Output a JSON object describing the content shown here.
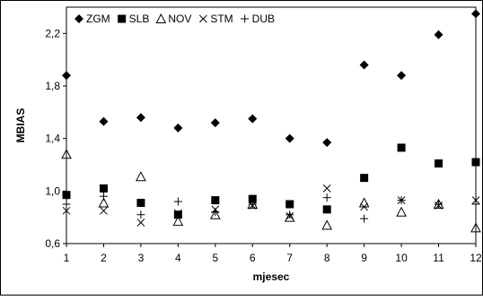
{
  "chart_data": {
    "type": "scatter",
    "title": "",
    "xlabel": "mjesec",
    "ylabel": "MBIAS",
    "x": [
      1,
      2,
      3,
      4,
      5,
      6,
      7,
      8,
      9,
      10,
      11,
      12
    ],
    "xticks": [
      "1",
      "2",
      "3",
      "4",
      "5",
      "6",
      "7",
      "8",
      "9",
      "10",
      "11",
      "12"
    ],
    "xlim": [
      1,
      12
    ],
    "ylim": [
      0.6,
      2.4
    ],
    "yticks": [
      "0,6",
      "1,0",
      "1,4",
      "1,8",
      "2,2"
    ],
    "ytick_values": [
      0.6,
      1.0,
      1.4,
      1.8,
      2.2
    ],
    "grid": false,
    "legend_position": "top-left",
    "series": [
      {
        "name": "ZGM",
        "marker": "diamond",
        "values": [
          1.88,
          1.53,
          1.56,
          1.48,
          1.52,
          1.55,
          1.4,
          1.37,
          1.96,
          1.88,
          2.19,
          2.35
        ]
      },
      {
        "name": "SLB",
        "marker": "square",
        "values": [
          0.97,
          1.02,
          0.91,
          0.82,
          0.93,
          0.94,
          0.9,
          0.86,
          1.1,
          1.33,
          1.21,
          1.22
        ]
      },
      {
        "name": "NOV",
        "marker": "triangle",
        "values": [
          1.28,
          0.91,
          1.11,
          0.77,
          0.82,
          0.9,
          0.8,
          0.74,
          0.91,
          0.84,
          0.9,
          0.72
        ]
      },
      {
        "name": "STM",
        "marker": "x",
        "values": [
          0.85,
          0.85,
          0.76,
          0.83,
          0.86,
          0.89,
          0.81,
          1.02,
          0.88,
          0.93,
          0.89,
          0.93
        ]
      },
      {
        "name": "DUB",
        "marker": "plus",
        "values": [
          0.9,
          0.96,
          0.82,
          0.92,
          0.84,
          0.9,
          0.82,
          0.95,
          0.79,
          0.93,
          0.9,
          0.9
        ]
      }
    ]
  }
}
